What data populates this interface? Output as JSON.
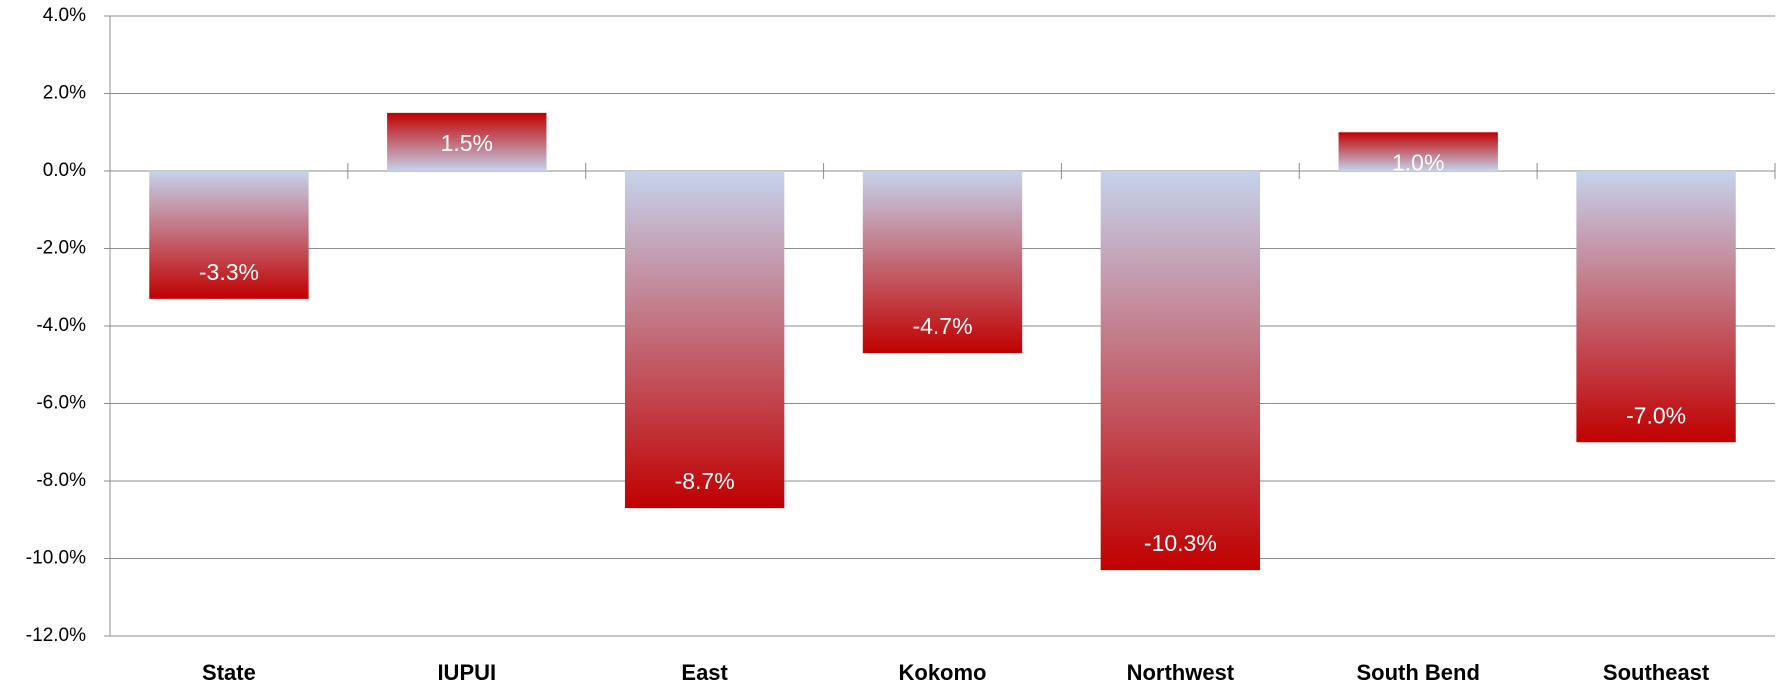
{
  "chart_data": {
    "type": "bar",
    "categories": [
      "State",
      "IUPUI",
      "East",
      "Kokomo",
      "Northwest",
      "South Bend",
      "Southeast"
    ],
    "values": [
      -3.3,
      1.5,
      -8.7,
      -4.7,
      -10.3,
      1.0,
      -7.0
    ],
    "value_labels": [
      "-3.3%",
      "1.5%",
      "-8.7%",
      "-4.7%",
      "-10.3%",
      "1.0%",
      "-7.0%"
    ],
    "colors": [
      "#c5d3ec",
      "#c00000"
    ],
    "ylim": [
      -12,
      4
    ],
    "yticks": [
      {
        "value": -12,
        "label": "-12.0%"
      },
      {
        "value": -10,
        "label": "-10.0%"
      },
      {
        "value": -8,
        "label": "-8.0%"
      },
      {
        "value": -6,
        "label": "-6.0%"
      },
      {
        "value": -4,
        "label": "-4.0%"
      },
      {
        "value": -2,
        "label": "-2.0%"
      },
      {
        "value": 0,
        "label": "0.0%"
      },
      {
        "value": 2,
        "label": "2.0%"
      },
      {
        "value": 4,
        "label": "4.0%"
      }
    ],
    "grid": true
  }
}
